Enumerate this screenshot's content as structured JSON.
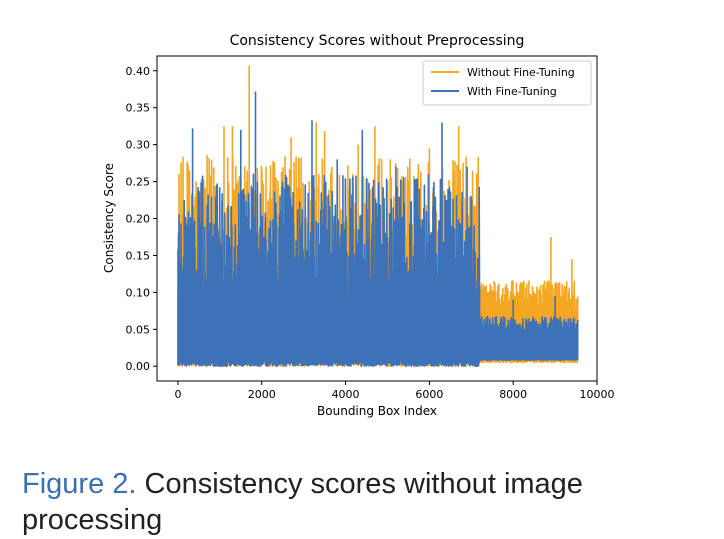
{
  "chart_data": {
    "type": "line",
    "title": "Consistency Scores without Preprocessing",
    "xlabel": "Bounding Box Index",
    "ylabel": "Consistency Score",
    "xlim": [
      -500,
      10000
    ],
    "ylim": [
      -0.02,
      0.42
    ],
    "x_ticks": [
      0,
      2000,
      4000,
      6000,
      8000,
      10000
    ],
    "x_tick_labels": [
      "0",
      "2000",
      "4000",
      "6000",
      "8000",
      "10000"
    ],
    "y_ticks": [
      0.0,
      0.05,
      0.1,
      0.15,
      0.2,
      0.25,
      0.3,
      0.35,
      0.4
    ],
    "y_tick_labels": [
      "0.00",
      "0.05",
      "0.10",
      "0.15",
      "0.20",
      "0.25",
      "0.30",
      "0.35",
      "0.40"
    ],
    "grid": false,
    "legend_position": "top-right",
    "n_points": 9550,
    "series": [
      {
        "name": "Without Fine-Tuning",
        "color": "#f5a623",
        "regime_ranges": [
          {
            "x_start": 0,
            "x_end": 7200,
            "min": 0.0,
            "max": 0.407
          },
          {
            "x_start": 7200,
            "x_end": 9550,
            "min": 0.005,
            "max": 0.175
          }
        ],
        "peaks": [
          {
            "x": 100,
            "y": 0.12
          },
          {
            "x": 220,
            "y": 0.277
          },
          {
            "x": 650,
            "y": 0.24
          },
          {
            "x": 1100,
            "y": 0.325
          },
          {
            "x": 1300,
            "y": 0.325
          },
          {
            "x": 1700,
            "y": 0.407
          },
          {
            "x": 2100,
            "y": 0.27
          },
          {
            "x": 2700,
            "y": 0.31
          },
          {
            "x": 3300,
            "y": 0.33
          },
          {
            "x": 3500,
            "y": 0.318
          },
          {
            "x": 4300,
            "y": 0.3
          },
          {
            "x": 4700,
            "y": 0.325
          },
          {
            "x": 6000,
            "y": 0.295
          },
          {
            "x": 6700,
            "y": 0.325
          },
          {
            "x": 8900,
            "y": 0.175
          },
          {
            "x": 9400,
            "y": 0.145
          }
        ]
      },
      {
        "name": "With Fine-Tuning",
        "color": "#3d72b8",
        "regime_ranges": [
          {
            "x_start": 0,
            "x_end": 7200,
            "min": 0.0,
            "max": 0.372
          },
          {
            "x_start": 7200,
            "x_end": 9550,
            "min": 0.008,
            "max": 0.1
          }
        ],
        "peaks": [
          {
            "x": 150,
            "y": 0.225
          },
          {
            "x": 350,
            "y": 0.322
          },
          {
            "x": 900,
            "y": 0.23
          },
          {
            "x": 1500,
            "y": 0.32
          },
          {
            "x": 1850,
            "y": 0.372
          },
          {
            "x": 2500,
            "y": 0.25
          },
          {
            "x": 3200,
            "y": 0.333
          },
          {
            "x": 3800,
            "y": 0.28
          },
          {
            "x": 4400,
            "y": 0.32
          },
          {
            "x": 5200,
            "y": 0.27
          },
          {
            "x": 6300,
            "y": 0.33
          },
          {
            "x": 6900,
            "y": 0.27
          },
          {
            "x": 8000,
            "y": 0.09
          },
          {
            "x": 9000,
            "y": 0.095
          }
        ]
      }
    ]
  },
  "caption": {
    "label": "Figure 2.",
    "text": " Consistency scores without image processing"
  }
}
